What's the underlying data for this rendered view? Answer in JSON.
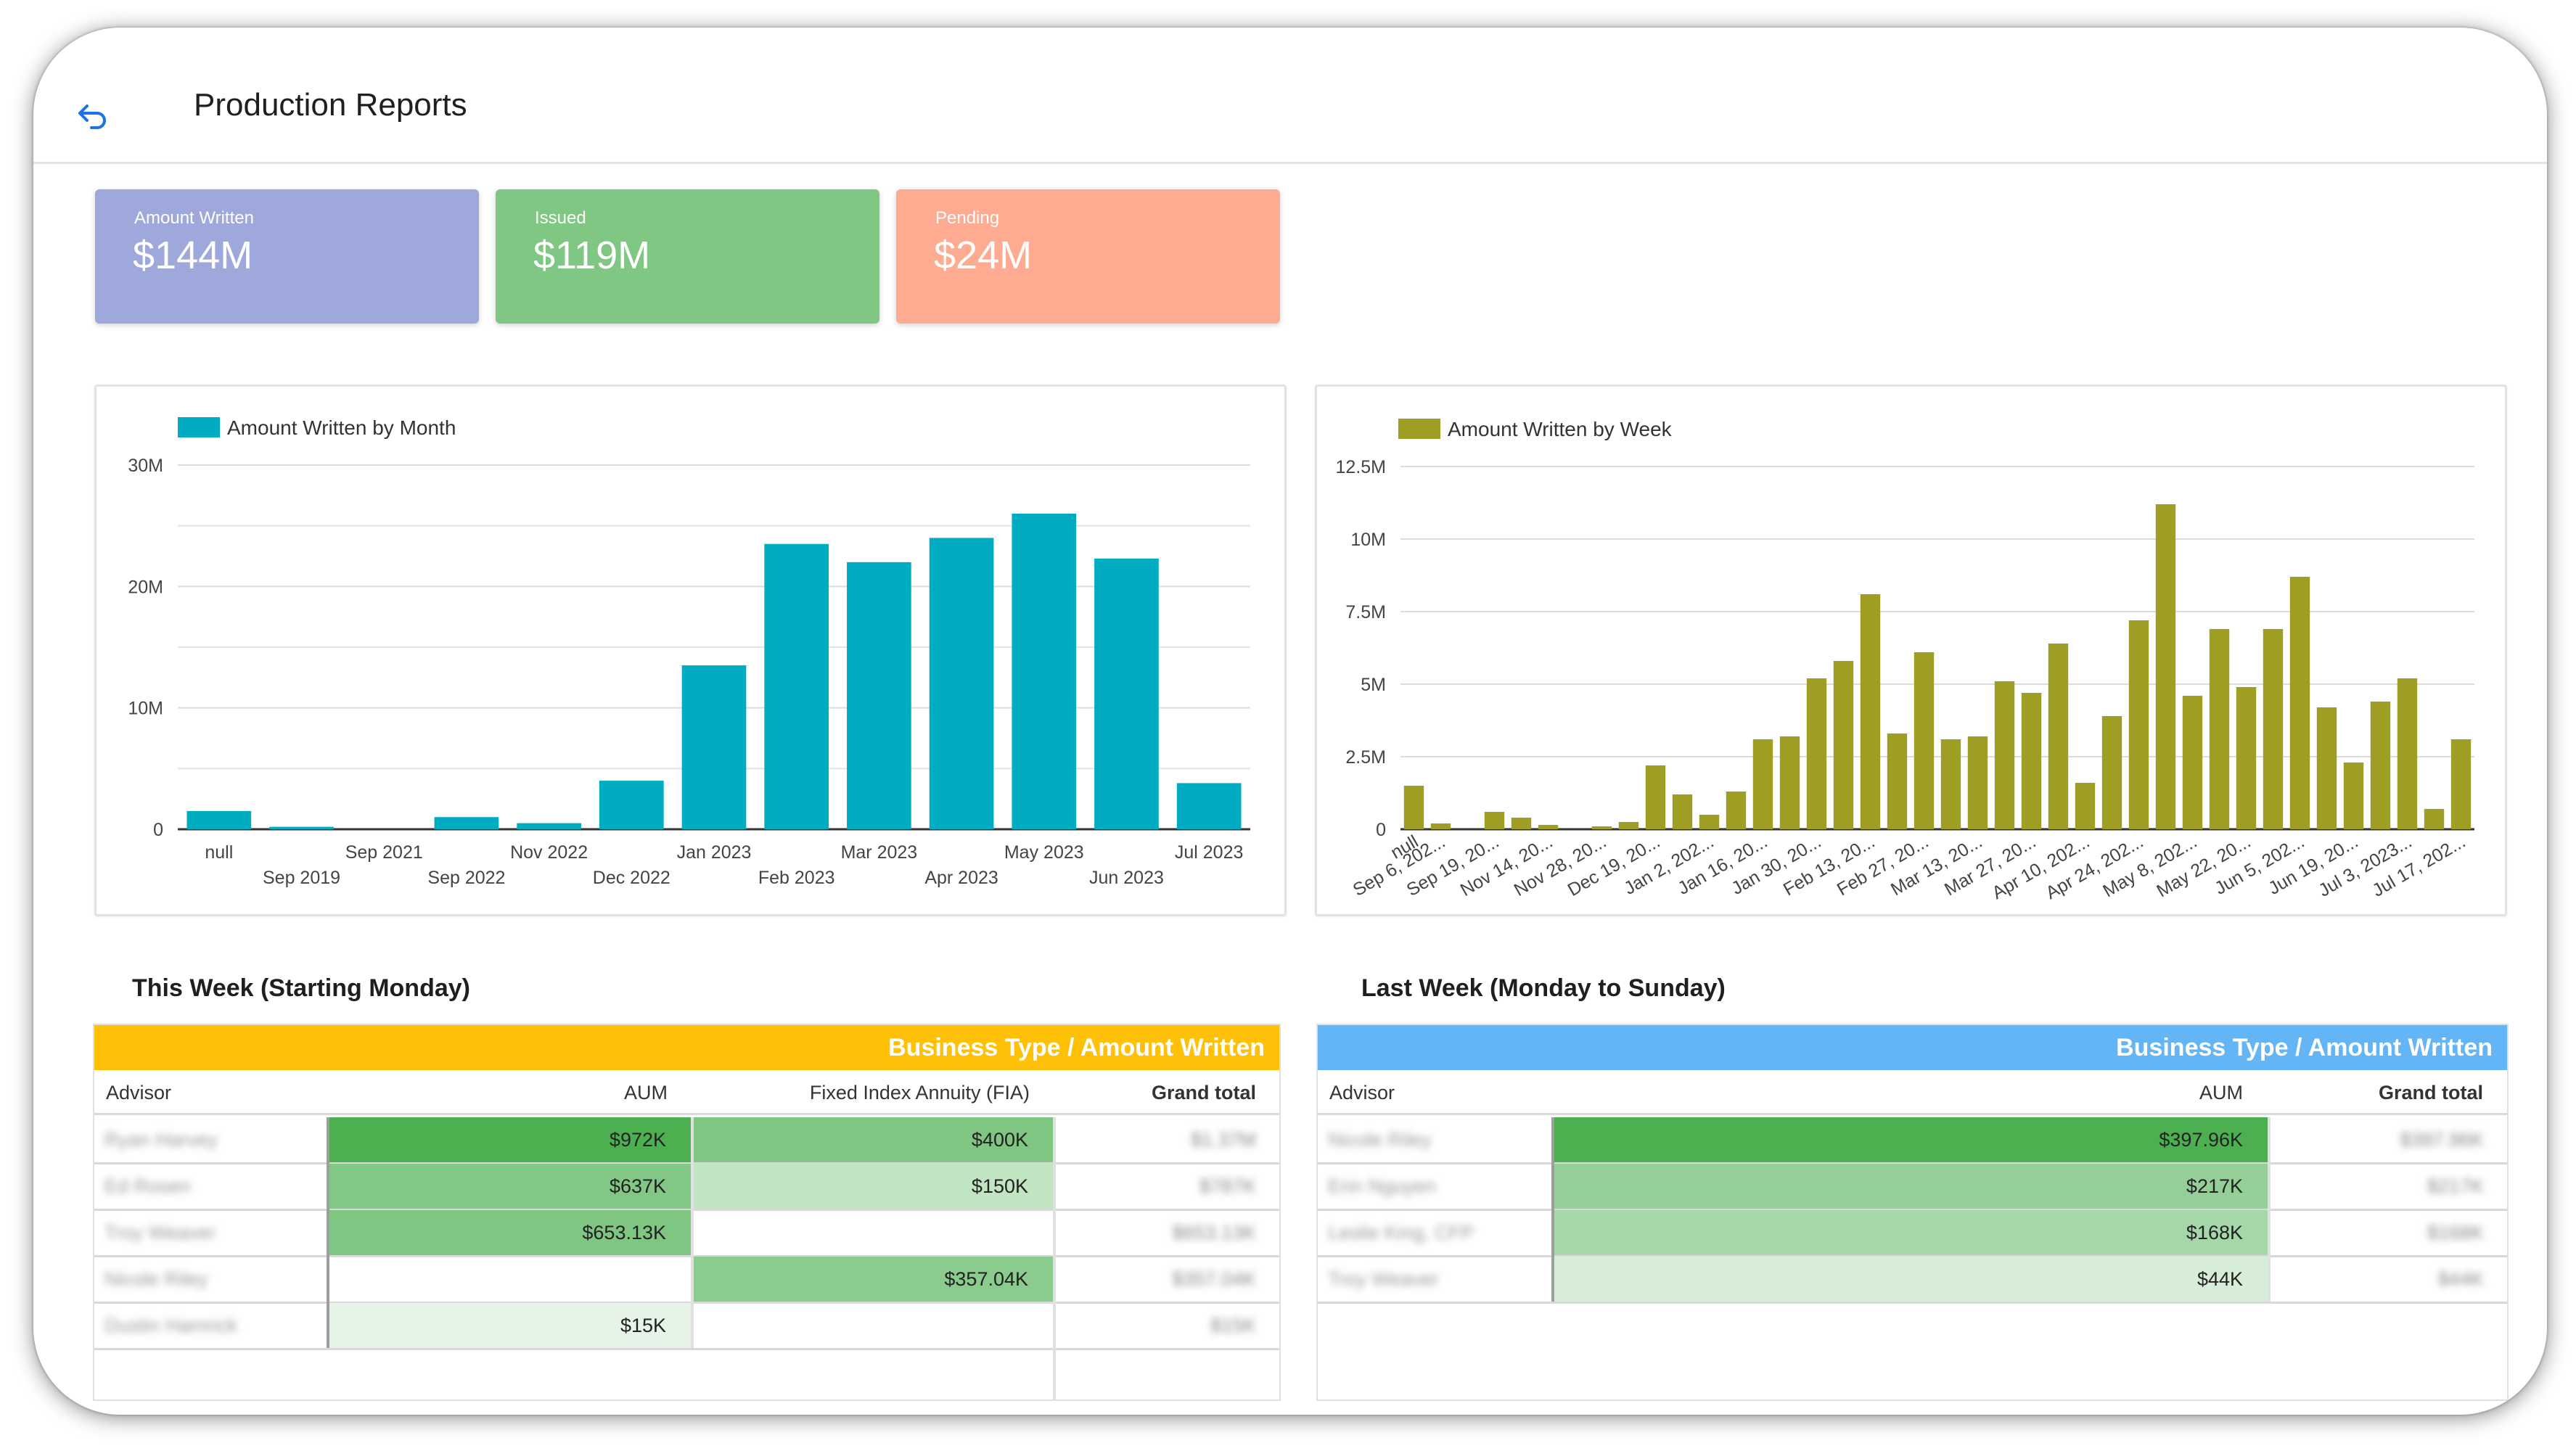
{
  "header": {
    "title": "Production Reports",
    "back_icon": "undo-arrow-icon"
  },
  "kpis": [
    {
      "label": "Amount Written",
      "value": "$144M",
      "color": "#9fa8da"
    },
    {
      "label": "Issued",
      "value": "$119M",
      "color": "#81c784"
    },
    {
      "label": "Pending",
      "value": "$24M",
      "color": "#ffab91"
    }
  ],
  "chart_data": [
    {
      "type": "bar",
      "legend": "Amount Written by Month",
      "color": "#00acc1",
      "categories": [
        "null",
        "Sep 2019",
        "Sep 2021",
        "Sep 2022",
        "Nov 2022",
        "Dec 2022",
        "Jan 2023",
        "Feb 2023",
        "Mar 2023",
        "Apr 2023",
        "May 2023",
        "Jun 2023",
        "Jul 2023"
      ],
      "values": [
        1500000,
        200000,
        0,
        1000000,
        500000,
        4000000,
        13500000,
        23500000,
        22000000,
        24000000,
        26000000,
        22300000,
        3800000
      ],
      "ylim": [
        0,
        30000000
      ],
      "yticks": [
        "0",
        "10M",
        "20M",
        "30M"
      ],
      "grid": true,
      "legend_position": "top-left"
    },
    {
      "type": "bar",
      "legend": "Amount Written by Week",
      "color": "#9e9d24",
      "categories": [
        "null",
        "Sep 6, 202...",
        "",
        "Sep 19, 20...",
        "",
        "Nov 14, 20...",
        "",
        "Nov 28, 20...",
        "",
        "Dec 19, 20...",
        "",
        "Jan 2, 202...",
        "",
        "Jan 16, 20...",
        "",
        "Jan 30, 20...",
        "",
        "Feb 13, 20...",
        "",
        "Feb 27, 20...",
        "",
        "Mar 13, 20...",
        "",
        "Mar 27, 20...",
        "",
        "Apr 10, 202...",
        "",
        "Apr 24, 202...",
        "",
        "May 8, 202...",
        "",
        "May 22, 20...",
        "",
        "Jun 5, 202...",
        "",
        "Jun 19, 20...",
        "",
        "Jul 3, 2023...",
        "",
        "Jul 17, 202..."
      ],
      "values": [
        1500000,
        200000,
        0,
        600000,
        400000,
        150000,
        0,
        100000,
        250000,
        2200000,
        1200000,
        500000,
        1300000,
        3100000,
        3200000,
        5200000,
        5800000,
        8100000,
        3300000,
        6100000,
        3100000,
        3200000,
        5100000,
        4700000,
        6400000,
        1600000,
        3900000,
        7200000,
        11200000,
        4600000,
        6900000,
        4900000,
        6900000,
        8700000,
        4200000,
        2300000,
        4400000,
        5200000,
        700000,
        3100000
      ],
      "ylim": [
        0,
        12500000
      ],
      "yticks": [
        "0",
        "2.5M",
        "5M",
        "7.5M",
        "10M",
        "12.5M"
      ],
      "grid": true,
      "legend_position": "top-left"
    }
  ],
  "tables": [
    {
      "title": "This Week (Starting Monday)",
      "banner": "Business Type / Amount Written",
      "banner_color": "#ffc107",
      "headers": [
        "Advisor",
        "AUM",
        "Fixed Index Annuity (FIA)",
        "Grand total"
      ],
      "rows": [
        {
          "advisor": "Ryan Harvey",
          "aum": "$972K",
          "fia": "$400K",
          "total": "$1.37M"
        },
        {
          "advisor": "Ed Rosen",
          "aum": "$637K",
          "fia": "$150K",
          "total": "$787K"
        },
        {
          "advisor": "Troy Weaver",
          "aum": "$653.13K",
          "fia": "",
          "total": "$653.13K"
        },
        {
          "advisor": "Nicole Riley",
          "aum": "",
          "fia": "$357.04K",
          "total": "$357.04K"
        },
        {
          "advisor": "Dustin Hamrick",
          "aum": "$15K",
          "fia": "",
          "total": "$15K"
        }
      ]
    },
    {
      "title": "Last Week (Monday to Sunday)",
      "banner": "Business Type / Amount Written",
      "banner_color": "#64b5f6",
      "headers": [
        "Advisor",
        "AUM",
        "Grand total"
      ],
      "rows": [
        {
          "advisor": "Nicole Riley",
          "aum": "$397.96K",
          "total": "$397.96K"
        },
        {
          "advisor": "Erin Nguyen",
          "aum": "$217K",
          "total": "$217K"
        },
        {
          "advisor": "Leslie King, CFP",
          "aum": "$168K",
          "total": "$168K"
        },
        {
          "advisor": "Troy Weaver",
          "aum": "$44K",
          "total": "$44K"
        }
      ]
    }
  ]
}
